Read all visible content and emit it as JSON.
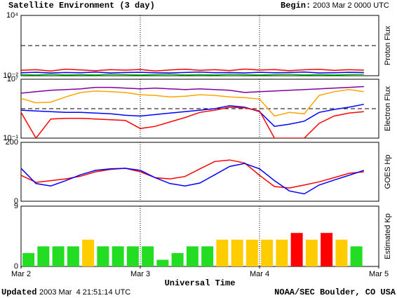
{
  "header": {
    "title": "Satellite Environment (3 day)",
    "begin_label": "Begin:",
    "begin": "2003 Mar 2 0000 UTC"
  },
  "footer": {
    "updated_label": "Updated",
    "updated": "2003 Mar  4 21:51:14 UTC",
    "credit": "NOAA/SEC Boulder, CO USA"
  },
  "chart_data": [
    {
      "type": "line",
      "y_label": "Proton Flux",
      "log": true,
      "ylim": [
        0.01,
        10000
      ],
      "yticks": [
        {
          "value": 10000,
          "label": "10⁴"
        },
        {
          "value": 0.01,
          "label": "10⁻²"
        }
      ],
      "threshold": 10,
      "x": [
        0,
        3,
        6,
        9,
        12,
        15,
        18,
        21,
        24,
        27,
        30,
        33,
        36,
        39,
        42,
        45,
        48,
        51,
        54,
        57,
        60,
        63,
        66,
        69
      ],
      "series": [
        {
          "color": "#ff0000",
          "values": [
            0.035,
            0.04,
            0.03,
            0.045,
            0.038,
            0.032,
            0.04,
            0.036,
            0.042,
            0.03,
            0.038,
            0.044,
            0.035,
            0.04,
            0.033,
            0.046,
            0.037,
            0.041,
            0.032,
            0.039,
            0.043,
            0.034,
            0.04,
            0.036
          ]
        },
        {
          "color": "#0000ff",
          "values": [
            0.02,
            0.022,
            0.019,
            0.021,
            0.02,
            0.023,
            0.019,
            0.021,
            0.022,
            0.02,
            0.019,
            0.021,
            0.023,
            0.02,
            0.021,
            0.019,
            0.022,
            0.02,
            0.021,
            0.023,
            0.019,
            0.02,
            0.022,
            0.021
          ]
        },
        {
          "color": "#00cc00",
          "values": [
            0.013,
            0.012,
            0.014,
            0.012,
            0.013,
            0.012,
            0.014,
            0.013,
            0.012,
            0.013,
            0.014,
            0.012,
            0.013,
            0.012,
            0.014,
            0.013,
            0.012,
            0.013,
            0.014,
            0.012,
            0.013,
            0.012,
            0.013,
            0.014
          ]
        }
      ]
    },
    {
      "type": "line",
      "y_label": "Electron Flux",
      "log": true,
      "ylim": [
        0.1,
        10000000
      ],
      "yticks": [
        {
          "value": 10000000,
          "label": "10⁷"
        },
        {
          "value": 0.1,
          "label": "10⁻¹"
        }
      ],
      "threshold": 1000,
      "x": [
        0,
        3,
        6,
        9,
        12,
        15,
        18,
        21,
        24,
        27,
        30,
        33,
        36,
        39,
        42,
        45,
        48,
        51,
        54,
        57,
        60,
        63,
        66,
        69
      ],
      "series": [
        {
          "color": "#8000a0",
          "values": [
            126000,
            200000,
            316000,
            398000,
            501000,
            794000,
            794000,
            631000,
            501000,
            631000,
            501000,
            398000,
            501000,
            398000,
            316000,
            158000,
            200000,
            251000,
            316000,
            398000,
            501000,
            631000,
            794000,
            1000000
          ]
        },
        {
          "color": "#ffa500",
          "values": [
            25100,
            6310,
            7940,
            39800,
            158000,
            251000,
            200000,
            158000,
            79400,
            63100,
            39800,
            50100,
            79400,
            63100,
            39800,
            31600,
            20000,
            100,
            316,
            200,
            63100,
            200000,
            398000,
            200000
          ]
        },
        {
          "color": "#0000ff",
          "values": [
            631,
            501,
            398,
            316,
            316,
            251,
            200,
            126,
            100,
            158,
            251,
            398,
            631,
            1000,
            2510,
            1580,
            398,
            3.98,
            7.94,
            20,
            316,
            794,
            1580,
            3980
          ]
        },
        {
          "color": "#ff0000",
          "values": [
            316,
            0.1,
            39.8,
            50.1,
            50.1,
            39.8,
            31.6,
            25.1,
            2,
            3.98,
            15.8,
            63.1,
            316,
            631,
            1580,
            1260,
            501,
            0.1,
            0.1,
            0.1,
            10,
            100,
            251,
            398
          ]
        }
      ]
    },
    {
      "type": "line",
      "y_label": "GOES Hp",
      "log": false,
      "ylim": [
        0,
        200
      ],
      "yticks": [
        200,
        0
      ],
      "x": [
        0,
        3,
        6,
        9,
        12,
        15,
        18,
        21,
        24,
        27,
        30,
        33,
        36,
        39,
        42,
        45,
        48,
        51,
        54,
        57,
        60,
        63,
        66,
        69
      ],
      "series": [
        {
          "color": "#ff0000",
          "values": [
            88,
            64,
            70,
            76,
            85,
            100,
            108,
            112,
            100,
            80,
            76,
            84,
            110,
            135,
            140,
            130,
            88,
            50,
            45,
            55,
            66,
            80,
            95,
            100
          ]
        },
        {
          "color": "#0000ff",
          "values": [
            112,
            60,
            52,
            70,
            90,
            105,
            110,
            112,
            105,
            80,
            60,
            52,
            62,
            90,
            118,
            128,
            110,
            70,
            35,
            25,
            55,
            72,
            88,
            105
          ]
        }
      ]
    },
    {
      "type": "bar",
      "y_label": "Estimated Kp",
      "ylim": [
        0,
        9
      ],
      "yticks": [
        9,
        0
      ],
      "x": [
        1.5,
        4.5,
        7.5,
        10.5,
        13.5,
        16.5,
        19.5,
        22.5,
        25.5,
        28.5,
        31.5,
        34.5,
        37.5,
        40.5,
        43.5,
        46.5,
        49.5,
        52.5,
        55.5,
        58.5,
        61.5,
        64.5,
        67.5
      ],
      "values": [
        2,
        3,
        3,
        3,
        4,
        3,
        3,
        3,
        3,
        1,
        2,
        3,
        3,
        4,
        4,
        4,
        4,
        4,
        5,
        4,
        5,
        4,
        3
      ],
      "colors": [
        "#22dd22",
        "#22dd22",
        "#22dd22",
        "#22dd22",
        "#ffcc00",
        "#22dd22",
        "#22dd22",
        "#22dd22",
        "#22dd22",
        "#22dd22",
        "#22dd22",
        "#22dd22",
        "#22dd22",
        "#ffcc00",
        "#ffcc00",
        "#ffcc00",
        "#ffcc00",
        "#ffcc00",
        "#ff0000",
        "#ffcc00",
        "#ff0000",
        "#ffcc00",
        "#22dd22"
      ],
      "xlim": [
        0,
        72
      ],
      "xticks": [
        {
          "value": 0,
          "label": "Mar 2"
        },
        {
          "value": 24,
          "label": "Mar 3"
        },
        {
          "value": 48,
          "label": "Mar 4"
        },
        {
          "value": 72,
          "label": "Mar 5"
        }
      ],
      "x_label": "Universal Time"
    }
  ]
}
